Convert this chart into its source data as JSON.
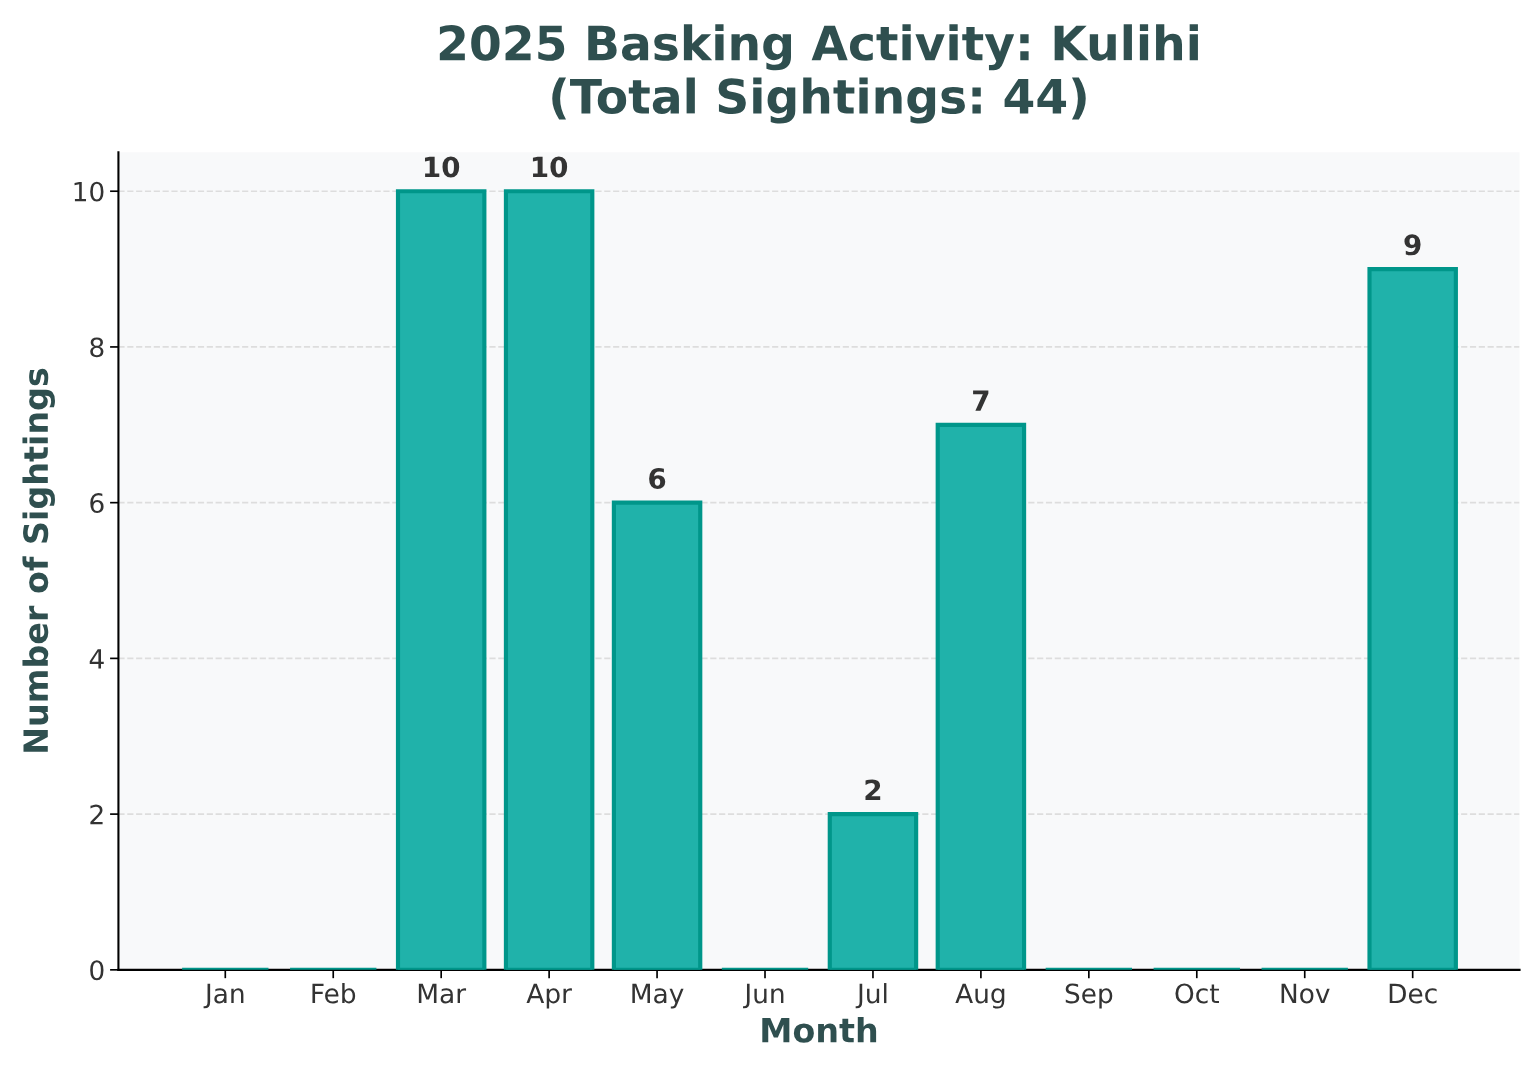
{
  "chart_data": {
    "type": "bar",
    "title": "2025 Basking Activity: Kulihi\n(Total Sightings: 44)",
    "xlabel": "Month",
    "ylabel": "Number of Sightings",
    "categories": [
      "Jan",
      "Feb",
      "Mar",
      "Apr",
      "May",
      "Jun",
      "Jul",
      "Aug",
      "Sep",
      "Oct",
      "Nov",
      "Dec"
    ],
    "values": [
      0,
      0,
      10,
      10,
      6,
      0,
      2,
      7,
      0,
      0,
      0,
      9
    ],
    "value_labels": [
      null,
      null,
      "10",
      "10",
      "6",
      null,
      "2",
      "7",
      null,
      null,
      null,
      "9"
    ],
    "colors": [
      "#00968a",
      "#00968a",
      "#20b2aa",
      "#20b2aa",
      "#20b2aa",
      "#00968a",
      "#20b2aa",
      "#20b2aa",
      "#00968a",
      "#00968a",
      "#00968a",
      "#20b2aa"
    ],
    "ylim": [
      0,
      10.5
    ],
    "yticks": [
      0,
      2,
      4,
      6,
      8,
      10
    ],
    "grid": "y"
  }
}
